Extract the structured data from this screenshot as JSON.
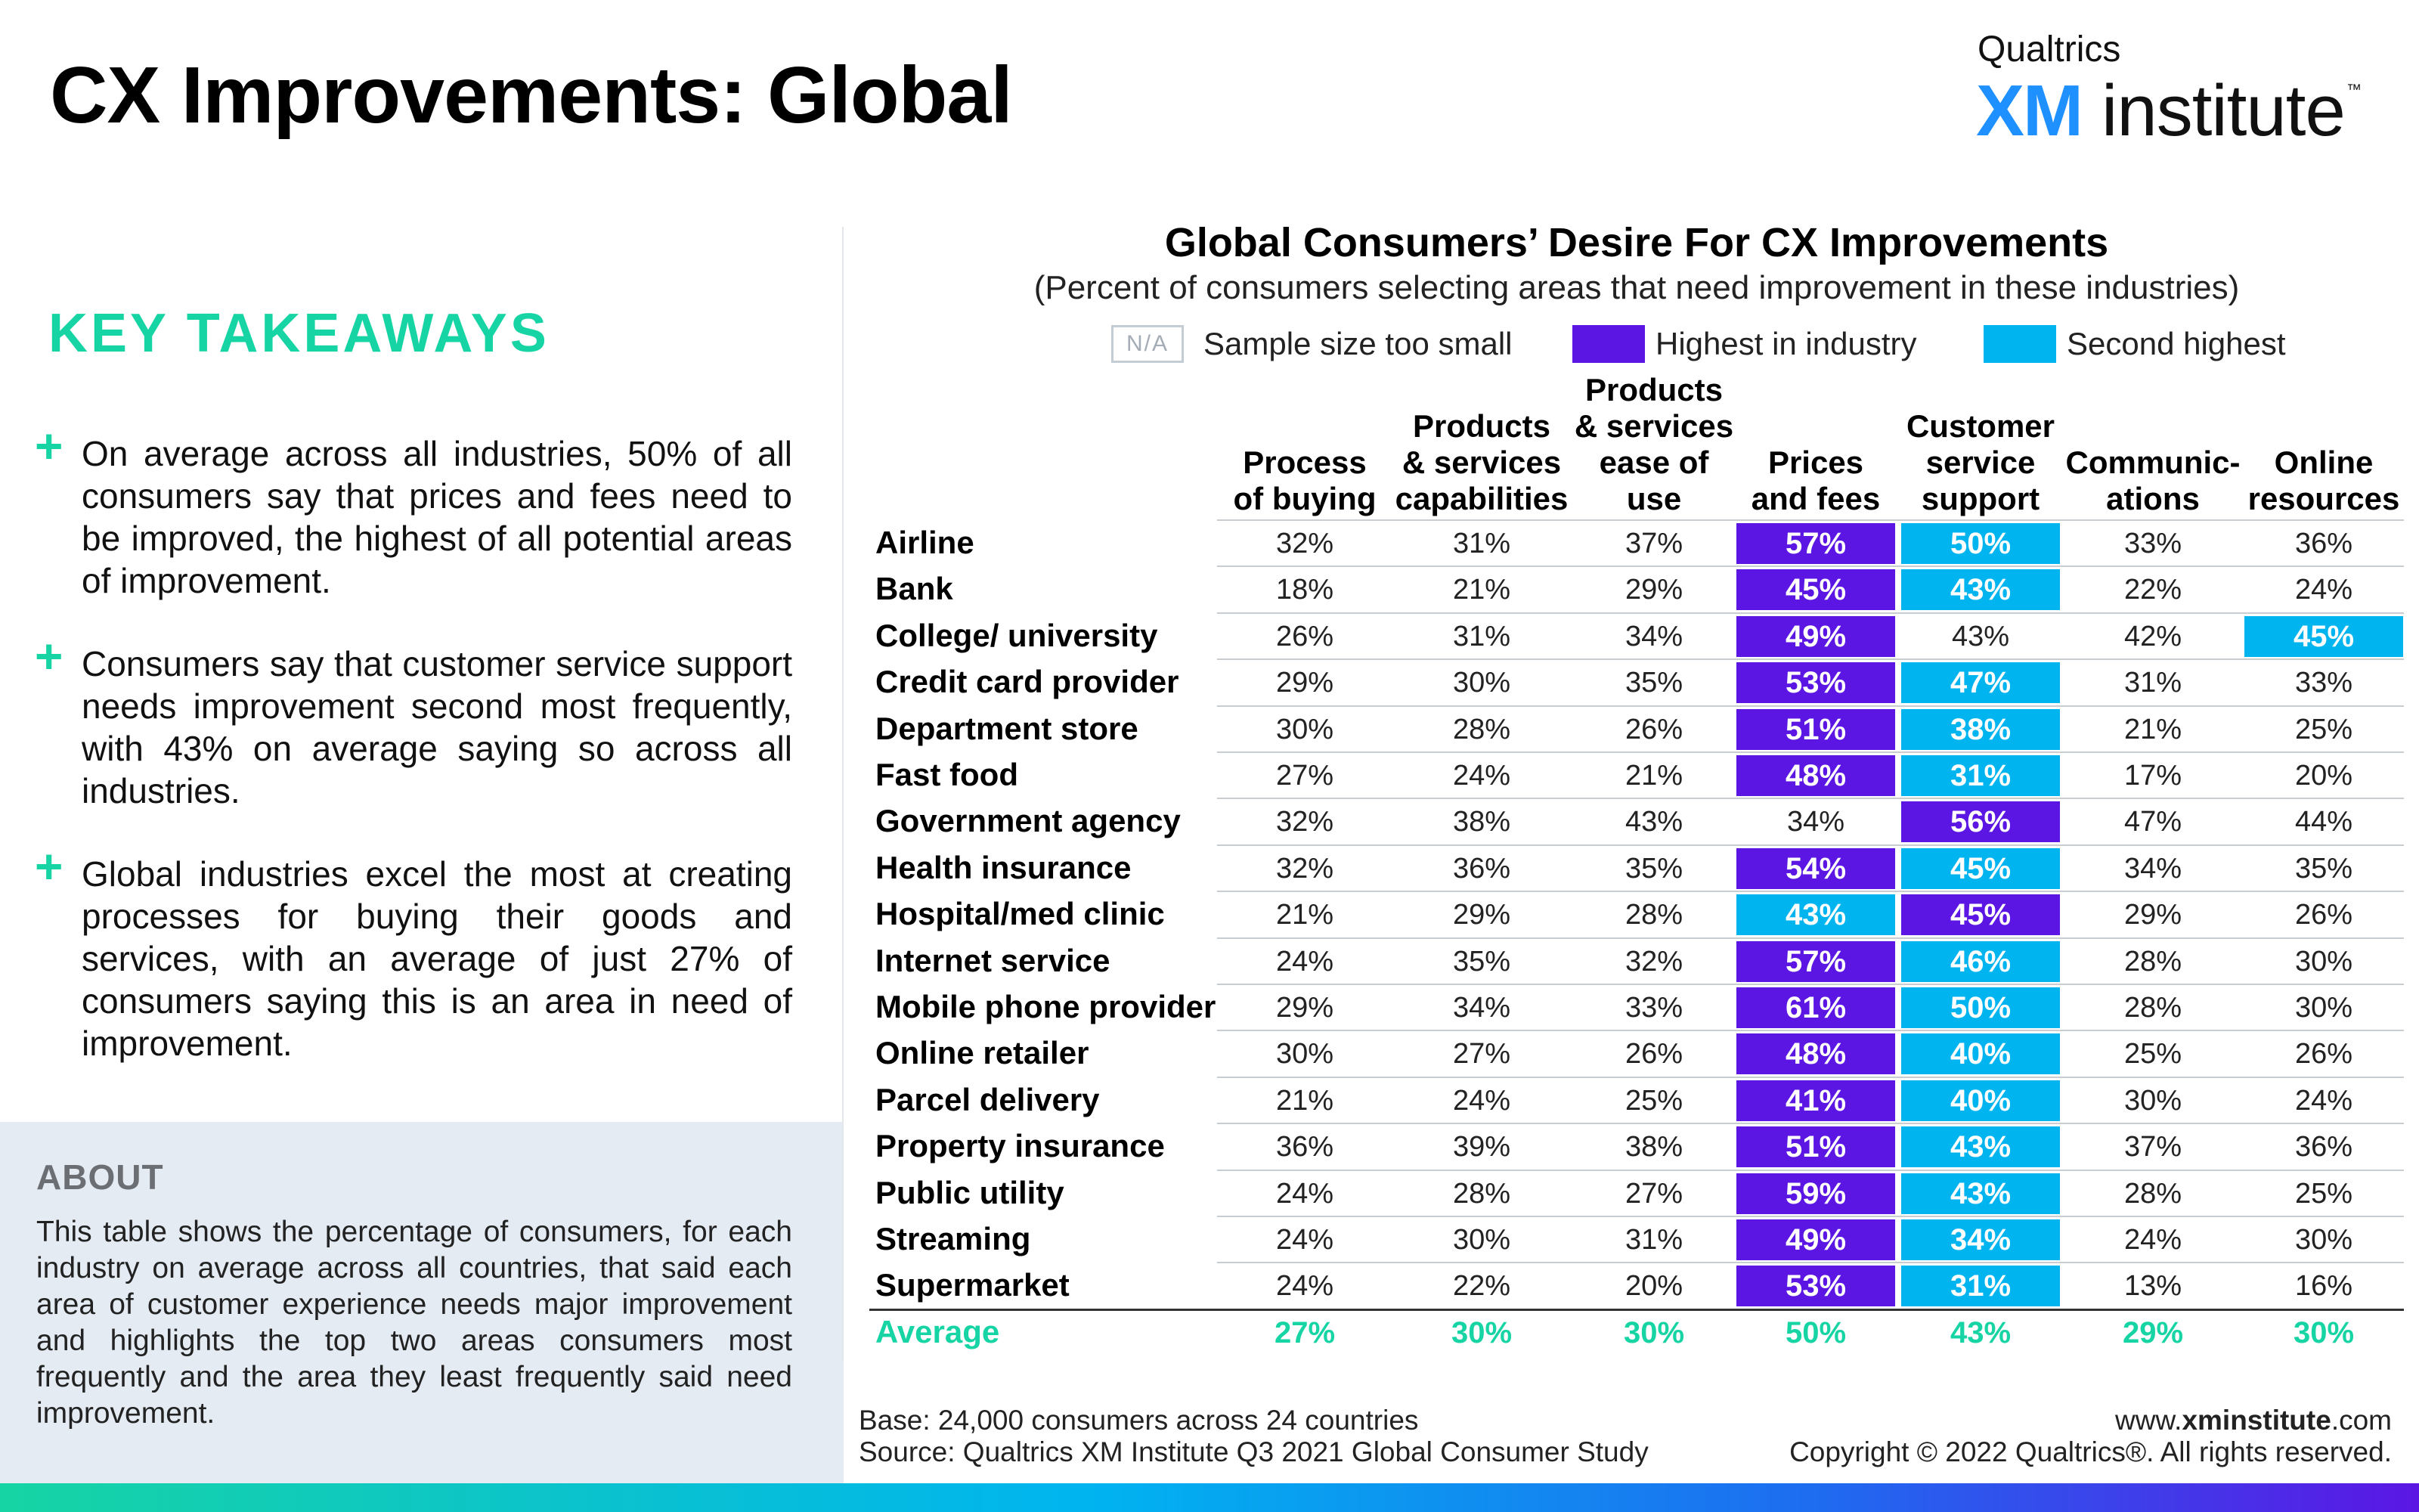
{
  "page": {
    "title": "CX Improvements: Global",
    "logo": {
      "top": "Qualtrics",
      "xm": "XM",
      "institute": "institute",
      "tm": "™"
    }
  },
  "takeaways": {
    "heading": "KEY TAKEAWAYS",
    "items": [
      "On average across all industries, 50% of all consumers say that prices and fees need to be improved, the highest of all potential areas of improvement.",
      "Consumers say that customer service support needs improvement second most frequently, with 43% on average saying so across all industries.",
      "Global industries excel the most at creating processes for buying their goods and services, with an average of just 27% of consumers saying this is an area in need of improvement."
    ]
  },
  "about": {
    "title": "ABOUT",
    "text": "This table shows the percentage of consumers, for each industry on average across all countries, that said each area of customer experience needs major improvement and highlights the top two areas consumers most frequently and the area they least frequently said need improvement."
  },
  "legend": {
    "na_box": "N/A",
    "na": "Sample size too small",
    "highest": "Highest in industry",
    "second": "Second highest"
  },
  "colors": {
    "highest": "#5b16e4",
    "second": "#00b4f0",
    "average": "#17d4a4"
  },
  "chart_data": {
    "type": "table",
    "title": "Global Consumers’ Desire For CX Improvements",
    "subtitle": "(Percent of consumers selecting areas that need improvement in these industries)",
    "columns": [
      [
        "Process",
        "of buying"
      ],
      [
        "Products",
        "& services",
        "capabilities"
      ],
      [
        "Products",
        "& services",
        "ease of",
        "use"
      ],
      [
        "Prices",
        "and fees"
      ],
      [
        "Customer",
        "service",
        "support"
      ],
      [
        "Communic-",
        "ations"
      ],
      [
        "Online",
        "resources"
      ]
    ],
    "rows": [
      {
        "label": "Airline",
        "values": [
          32,
          31,
          37,
          57,
          50,
          33,
          36
        ],
        "highest": 3,
        "second": 4
      },
      {
        "label": "Bank",
        "values": [
          18,
          21,
          29,
          45,
          43,
          22,
          24
        ],
        "highest": 3,
        "second": 4
      },
      {
        "label": "College/ university",
        "values": [
          26,
          31,
          34,
          49,
          43,
          42,
          45
        ],
        "highest": 3,
        "second": 6
      },
      {
        "label": "Credit card provider",
        "values": [
          29,
          30,
          35,
          53,
          47,
          31,
          33
        ],
        "highest": 3,
        "second": 4
      },
      {
        "label": "Department store",
        "values": [
          30,
          28,
          26,
          51,
          38,
          21,
          25
        ],
        "highest": 3,
        "second": 4
      },
      {
        "label": "Fast food",
        "values": [
          27,
          24,
          21,
          48,
          31,
          17,
          20
        ],
        "highest": 3,
        "second": 4
      },
      {
        "label": "Government agency",
        "values": [
          32,
          38,
          43,
          34,
          56,
          47,
          44
        ],
        "highest": 4,
        "second": null
      },
      {
        "label": "Health insurance",
        "values": [
          32,
          36,
          35,
          54,
          45,
          34,
          35
        ],
        "highest": 3,
        "second": 4
      },
      {
        "label": "Hospital/med clinic",
        "values": [
          21,
          29,
          28,
          43,
          45,
          29,
          26
        ],
        "highest": 4,
        "second": 3
      },
      {
        "label": "Internet service",
        "values": [
          24,
          35,
          32,
          57,
          46,
          28,
          30
        ],
        "highest": 3,
        "second": 4
      },
      {
        "label": "Mobile phone provider",
        "values": [
          29,
          34,
          33,
          61,
          50,
          28,
          30
        ],
        "highest": 3,
        "second": 4
      },
      {
        "label": "Online retailer",
        "values": [
          30,
          27,
          26,
          48,
          40,
          25,
          26
        ],
        "highest": 3,
        "second": 4
      },
      {
        "label": "Parcel delivery",
        "values": [
          21,
          24,
          25,
          41,
          40,
          30,
          24
        ],
        "highest": 3,
        "second": 4
      },
      {
        "label": "Property insurance",
        "values": [
          36,
          39,
          38,
          51,
          43,
          37,
          36
        ],
        "highest": 3,
        "second": 4
      },
      {
        "label": "Public utility",
        "values": [
          24,
          28,
          27,
          59,
          43,
          28,
          25
        ],
        "highest": 3,
        "second": 4
      },
      {
        "label": "Streaming",
        "values": [
          24,
          30,
          31,
          49,
          34,
          24,
          30
        ],
        "highest": 3,
        "second": 4
      },
      {
        "label": "Supermarket",
        "values": [
          24,
          22,
          20,
          53,
          31,
          13,
          16
        ],
        "highest": 3,
        "second": 4
      }
    ],
    "average": {
      "label": "Average",
      "values": [
        27,
        30,
        30,
        50,
        43,
        29,
        30
      ]
    },
    "unit": "%"
  },
  "footer": {
    "base": "Base: 24,000 consumers across 24 countries",
    "source": "Source: Qualtrics XM Institute Q3 2021 Global Consumer Study",
    "url_pre": "www.",
    "url_bold": "xminstitute",
    "url_post": ".com",
    "copyright": "Copyright © 2022 Qualtrics®. All rights reserved."
  }
}
